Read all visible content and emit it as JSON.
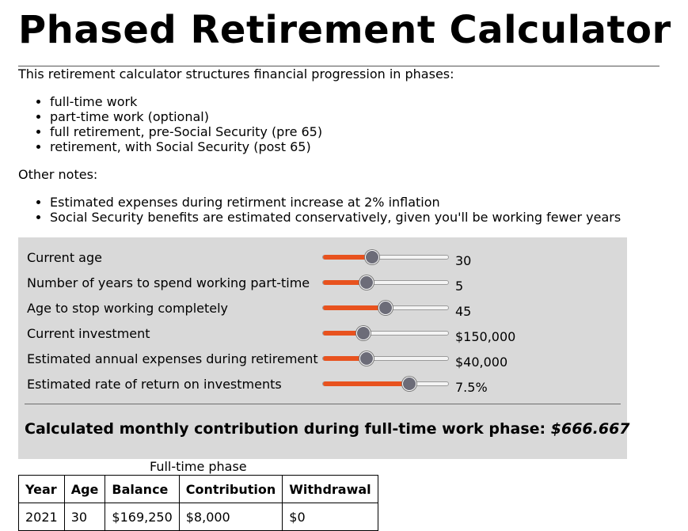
{
  "title": "Phased Retirement Calculator",
  "intro": "This retirement calculator structures financial progression in phases:",
  "phases": [
    "full-time work",
    "part-time work (optional)",
    "full retirement, pre-Social Security (pre 65)",
    "retirement, with Social Security (post 65)"
  ],
  "notes_title": "Other notes:",
  "notes": [
    "Estimated expenses during retirment increase at 2% inflation",
    "Social Security benefits are estimated conservatively, given you'll be working fewer years"
  ],
  "sliders": [
    {
      "label": "Current age",
      "value": "30",
      "level_percent": 39
    },
    {
      "label": "Number of years to spend working part-time",
      "value": "5",
      "level_percent": 35
    },
    {
      "label": "Age to stop working completely",
      "value": "45",
      "level_percent": 50
    },
    {
      "label": "Current investment",
      "value": "$150,000",
      "level_percent": 32
    },
    {
      "label": "Estimated annual expenses during retirement",
      "value": "$40,000",
      "level_percent": 35
    },
    {
      "label": "Estimated rate of return on investments",
      "value": "7.5%",
      "level_percent": 69
    }
  ],
  "result": {
    "label": "Calculated monthly contribution during full-time work phase:",
    "value": "$666.667"
  },
  "table": {
    "caption": "Full-time phase",
    "columns": [
      "Year",
      "Age",
      "Balance",
      "Contribution",
      "Withdrawal"
    ],
    "rows": [
      [
        "2021",
        "30",
        "$169,250",
        "$8,000",
        "$0"
      ]
    ]
  },
  "colors": {
    "slider_fill": "#e8521e",
    "slider_thumb": "#6c6c78",
    "panel_background": "#d9d9d9"
  }
}
